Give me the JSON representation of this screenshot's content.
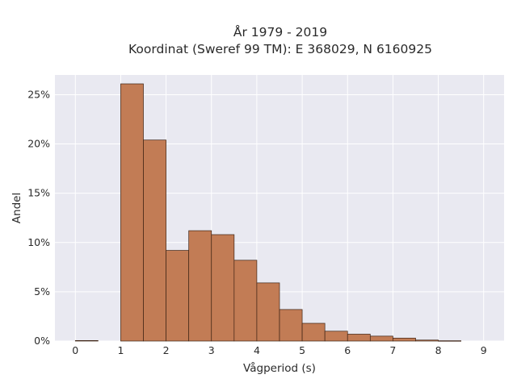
{
  "chart_data": {
    "type": "bar",
    "title_lines": [
      "År 1979 - 2019",
      "Koordinat (Sweref 99 TM): E 368029, N 6160925"
    ],
    "xlabel": "Vågperiod (s)",
    "ylabel": "Andel",
    "xlim": [
      -0.45,
      9.45
    ],
    "ylim": [
      0,
      0.27
    ],
    "x_ticks": [
      0,
      1,
      2,
      3,
      4,
      5,
      6,
      7,
      8,
      9
    ],
    "y_ticks": [
      0,
      0.05,
      0.1,
      0.15,
      0.2,
      0.25
    ],
    "y_tick_labels": [
      "0%",
      "5%",
      "10%",
      "15%",
      "20%",
      "25%"
    ],
    "bin_edges": [
      0,
      0.5,
      1,
      1.5,
      2,
      2.5,
      3,
      3.5,
      4,
      4.5,
      5,
      5.5,
      6,
      6.5,
      7,
      7.5,
      8,
      8.5
    ],
    "values": [
      0.0005,
      0,
      0.261,
      0.204,
      0.092,
      0.112,
      0.108,
      0.082,
      0.059,
      0.032,
      0.018,
      0.01,
      0.007,
      0.005,
      0.003,
      0.001,
      0.0003
    ],
    "grid": true,
    "colors": {
      "bar_fill": "#c27c55",
      "bar_edge": "#3d2314",
      "plot_background": "#e9e9f1",
      "grid": "#ffffff"
    }
  }
}
